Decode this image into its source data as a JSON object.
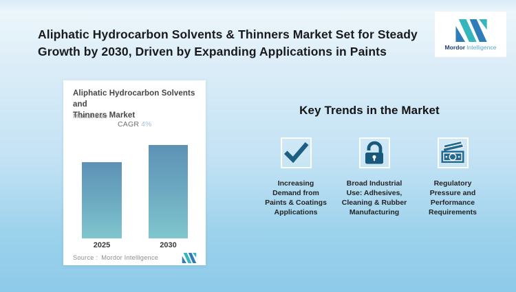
{
  "title": {
    "lines": [
      "Aliphatic Hydrocarbon Solvents & Thinners Market Set for Steady",
      "Growth by 2030, Driven by Expanding Applications in Paints"
    ]
  },
  "logo": {
    "brand_bold": "Mordor",
    "brand_light": "Intelligence"
  },
  "chart_card": {
    "title_lines": [
      "Aliphatic Hydrocarbon Solvents and",
      "Thinners Market"
    ],
    "subtitle": "Market Size",
    "cagr_label": "CAGR",
    "cagr_value": "4%",
    "source_prefix": "Source :",
    "source_value": "Mordor Intelligence"
  },
  "chart_data": {
    "type": "bar",
    "title": "Aliphatic Hydrocarbon Solvents and Thinners Market",
    "subtitle": "Market Size",
    "categories": [
      "2025",
      "2030"
    ],
    "values": [
      1.0,
      1.22
    ],
    "values_note": "indexed market size (no numeric axis shown); 2030 ≈ 1.22× of 2025, consistent with CAGR 4%",
    "annotation": "CAGR 4%",
    "xlabel": "",
    "ylabel": "",
    "grid": false,
    "legend": false,
    "bar_gradient": [
      "#5e92b6",
      "#80c6ce"
    ]
  },
  "trends": {
    "heading": "Key Trends in the Market",
    "items": [
      {
        "icon": "checkmark-icon",
        "lines": [
          "Increasing",
          "Demand from",
          "Paints & Coatings",
          "Applications"
        ]
      },
      {
        "icon": "open-lock-icon",
        "lines": [
          "Broad Industrial",
          "Use: Adhesives,",
          "Cleaning & Rubber",
          "Manufacturing"
        ]
      },
      {
        "icon": "banknotes-icon",
        "lines": [
          "Regulatory",
          "Pressure and",
          "Performance",
          "Requirements"
        ]
      }
    ]
  },
  "colors": {
    "background_top": "#ecf6fb",
    "background_bottom": "#8dcae9",
    "title_text": "#191a1b",
    "icon_teal": "#1d5f82",
    "logo_teal": "#35b5bc",
    "logo_blue": "#2e7cb8",
    "brand_navy": "#1e3f72",
    "brand_light_blue": "#58a6d4",
    "cagr_value_blue": "#9cc0dc",
    "bar_top": "#5e92b6",
    "bar_bottom": "#80c6ce"
  }
}
